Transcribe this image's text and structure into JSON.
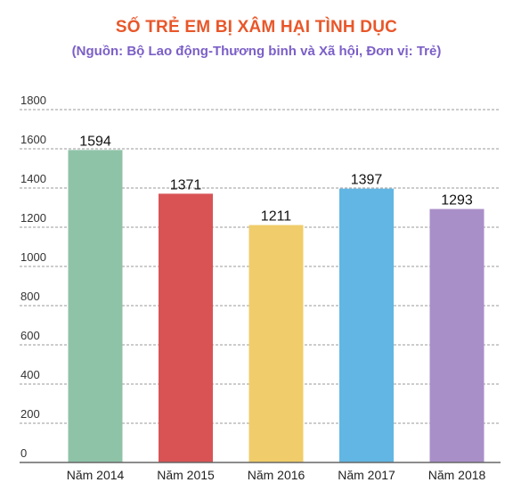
{
  "chart_data": {
    "type": "bar",
    "title": "SỐ TRẺ EM BỊ XÂM HẠI TÌNH DỤC",
    "subtitle": "(Nguồn:  Bộ Lao động-Thương binh và Xã hội, Đơn vị: Trẻ)",
    "categories": [
      "Năm 2014",
      "Năm 2015",
      "Năm 2016",
      "Năm 2017",
      "Năm 2018"
    ],
    "values": [
      1594,
      1371,
      1211,
      1397,
      1293
    ],
    "data_labels": [
      "1594",
      "1371",
      "1211",
      "1397",
      "1293"
    ],
    "colors": [
      "#8fc3a8",
      "#d95355",
      "#f0cd6a",
      "#62b6e3",
      "#a98fc8"
    ],
    "ylim": [
      0,
      1800
    ],
    "yticks": [
      0,
      200,
      400,
      600,
      800,
      1000,
      1200,
      1400,
      1600,
      1800
    ],
    "ytick_labels": [
      "0",
      "200",
      "400",
      "600",
      "800",
      "1000",
      "1200",
      "1400",
      "1600",
      "1800"
    ],
    "grid": "dashed horizontal",
    "xlabel": "",
    "ylabel": ""
  }
}
